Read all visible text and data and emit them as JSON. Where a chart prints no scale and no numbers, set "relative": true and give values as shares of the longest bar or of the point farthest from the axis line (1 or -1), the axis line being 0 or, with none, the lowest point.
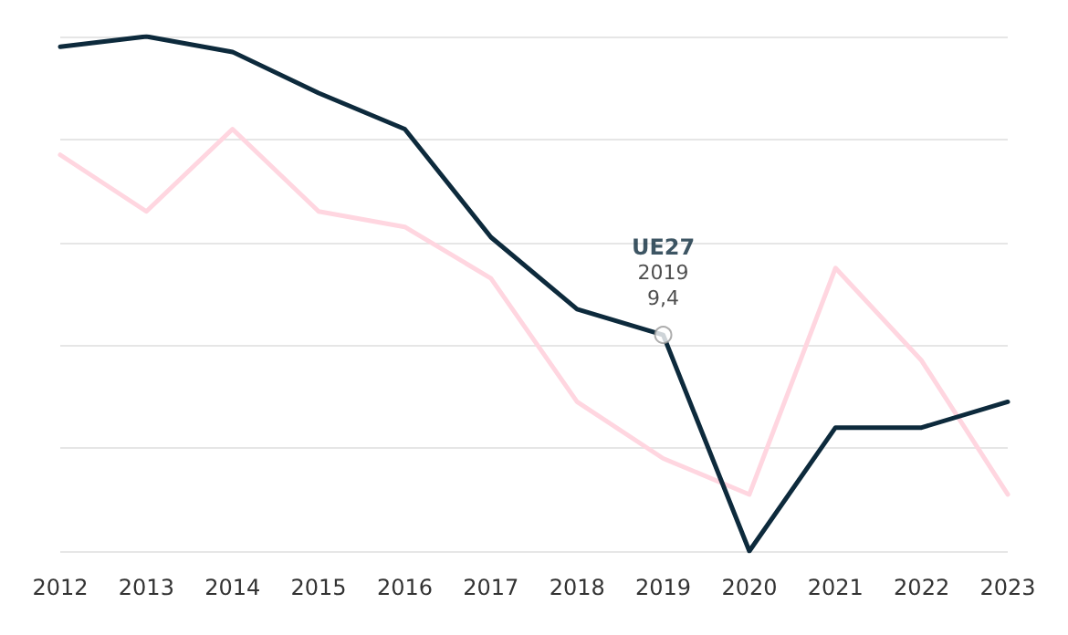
{
  "chart_data": {
    "type": "line",
    "relative": true,
    "categories": [
      "2012",
      "2013",
      "2014",
      "2015",
      "2016",
      "2017",
      "2018",
      "2019",
      "2020",
      "2021",
      "2022",
      "2023"
    ],
    "series": [
      {
        "color": "#ffd6e0",
        "values": [
          0.77,
          0.66,
          0.82,
          0.66,
          0.63,
          0.53,
          0.29,
          0.18,
          0.11,
          0.55,
          0.37,
          0.11
        ]
      },
      {
        "name": "UE27",
        "color": "#0d2a3c",
        "values": [
          0.98,
          1,
          0.97,
          0.89,
          0.82,
          0.61,
          0.47,
          0.42,
          0,
          0.24,
          0.24,
          0.29
        ]
      }
    ],
    "annotations": [
      {
        "text": "9,4",
        "x": "2019",
        "y": 0.42
      }
    ],
    "grid": "y",
    "legend": false,
    "marker": "none",
    "line_style": "solid"
  }
}
